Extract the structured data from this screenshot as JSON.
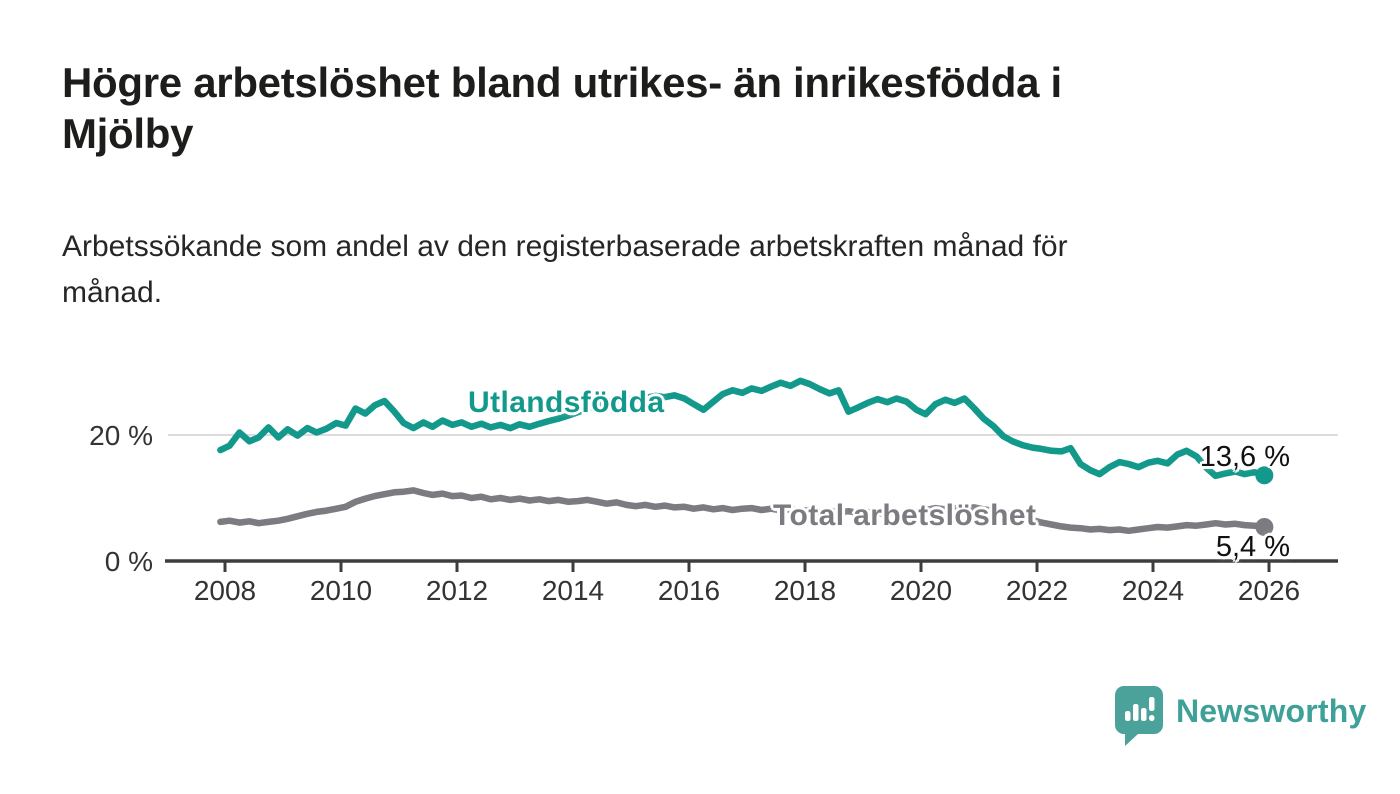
{
  "chart_data": {
    "type": "line",
    "title": "Högre arbetslöshet bland utrikes- än inrikesfödda i\nMjölby",
    "subtitle": "Arbetssökande som andel av den registerbaserade arbetskraften månad för\nmånad.",
    "x_axis": {
      "ticks": [
        2008,
        2010,
        2012,
        2014,
        2016,
        2018,
        2020,
        2022,
        2024,
        2026
      ],
      "range_years": [
        2007.9,
        2027.3
      ]
    },
    "y_axis": {
      "unit": "%",
      "range": [
        0,
        30
      ],
      "gridlines": [
        {
          "value": 20,
          "label": "20 %"
        },
        {
          "value": 0,
          "label": "0 %"
        }
      ]
    },
    "series": [
      {
        "name": "Utlandsfödda",
        "color": "#13998b",
        "end_label": "13,6 %",
        "end_value": 13.6,
        "points": [
          [
            2007.92,
            17.6
          ],
          [
            2008.08,
            18.3
          ],
          [
            2008.25,
            20.4
          ],
          [
            2008.42,
            19.0
          ],
          [
            2008.58,
            19.6
          ],
          [
            2008.75,
            21.2
          ],
          [
            2008.92,
            19.6
          ],
          [
            2009.08,
            20.9
          ],
          [
            2009.25,
            19.9
          ],
          [
            2009.42,
            21.1
          ],
          [
            2009.58,
            20.4
          ],
          [
            2009.75,
            21.0
          ],
          [
            2009.92,
            21.9
          ],
          [
            2010.08,
            21.5
          ],
          [
            2010.25,
            24.2
          ],
          [
            2010.42,
            23.4
          ],
          [
            2010.58,
            24.7
          ],
          [
            2010.75,
            25.4
          ],
          [
            2010.92,
            23.7
          ],
          [
            2011.08,
            21.9
          ],
          [
            2011.25,
            21.1
          ],
          [
            2011.42,
            22.0
          ],
          [
            2011.58,
            21.3
          ],
          [
            2011.75,
            22.3
          ],
          [
            2011.92,
            21.6
          ],
          [
            2012.08,
            22.0
          ],
          [
            2012.25,
            21.3
          ],
          [
            2012.42,
            21.8
          ],
          [
            2012.58,
            21.2
          ],
          [
            2012.75,
            21.6
          ],
          [
            2012.92,
            21.1
          ],
          [
            2013.08,
            21.7
          ],
          [
            2013.25,
            21.3
          ],
          [
            2013.42,
            21.8
          ],
          [
            2013.58,
            22.2
          ],
          [
            2013.75,
            22.6
          ],
          [
            2013.92,
            23.1
          ],
          [
            2014.08,
            23.6
          ],
          [
            2014.25,
            24.2
          ],
          [
            2014.42,
            24.7
          ],
          [
            2014.58,
            25.1
          ],
          [
            2014.75,
            25.4
          ],
          [
            2014.92,
            25.8
          ],
          [
            2015.08,
            25.5
          ],
          [
            2015.25,
            25.9
          ],
          [
            2015.42,
            26.2
          ],
          [
            2015.58,
            26.0
          ],
          [
            2015.75,
            26.3
          ],
          [
            2015.92,
            25.8
          ],
          [
            2016.08,
            24.9
          ],
          [
            2016.25,
            24.0
          ],
          [
            2016.42,
            25.3
          ],
          [
            2016.58,
            26.5
          ],
          [
            2016.75,
            27.1
          ],
          [
            2016.92,
            26.7
          ],
          [
            2017.08,
            27.4
          ],
          [
            2017.25,
            27.0
          ],
          [
            2017.42,
            27.7
          ],
          [
            2017.58,
            28.3
          ],
          [
            2017.75,
            27.8
          ],
          [
            2017.92,
            28.6
          ],
          [
            2018.08,
            28.1
          ],
          [
            2018.25,
            27.3
          ],
          [
            2018.42,
            26.6
          ],
          [
            2018.58,
            27.1
          ],
          [
            2018.75,
            23.7
          ],
          [
            2018.92,
            24.4
          ],
          [
            2019.08,
            25.1
          ],
          [
            2019.25,
            25.7
          ],
          [
            2019.42,
            25.2
          ],
          [
            2019.58,
            25.8
          ],
          [
            2019.75,
            25.3
          ],
          [
            2019.92,
            24.0
          ],
          [
            2020.08,
            23.3
          ],
          [
            2020.25,
            24.9
          ],
          [
            2020.42,
            25.6
          ],
          [
            2020.58,
            25.1
          ],
          [
            2020.75,
            25.8
          ],
          [
            2020.92,
            24.2
          ],
          [
            2021.08,
            22.6
          ],
          [
            2021.25,
            21.4
          ],
          [
            2021.42,
            19.8
          ],
          [
            2021.58,
            19.0
          ],
          [
            2021.75,
            18.4
          ],
          [
            2021.92,
            18.0
          ],
          [
            2022.08,
            17.8
          ],
          [
            2022.25,
            17.5
          ],
          [
            2022.42,
            17.4
          ],
          [
            2022.58,
            17.9
          ],
          [
            2022.75,
            15.4
          ],
          [
            2022.92,
            14.4
          ],
          [
            2023.08,
            13.8
          ],
          [
            2023.25,
            14.9
          ],
          [
            2023.42,
            15.7
          ],
          [
            2023.58,
            15.4
          ],
          [
            2023.75,
            14.9
          ],
          [
            2023.92,
            15.6
          ],
          [
            2024.08,
            15.9
          ],
          [
            2024.25,
            15.5
          ],
          [
            2024.42,
            16.9
          ],
          [
            2024.58,
            17.5
          ],
          [
            2024.75,
            16.6
          ],
          [
            2024.92,
            14.8
          ],
          [
            2025.08,
            13.5
          ],
          [
            2025.25,
            13.9
          ],
          [
            2025.42,
            14.2
          ],
          [
            2025.58,
            13.8
          ],
          [
            2025.75,
            14.1
          ],
          [
            2025.92,
            13.6
          ]
        ]
      },
      {
        "name": "Total arbetslöshet",
        "color": "#7b7b81",
        "end_label": "5,4 %",
        "end_value": 5.4,
        "points": [
          [
            2007.92,
            6.2
          ],
          [
            2008.08,
            6.4
          ],
          [
            2008.25,
            6.1
          ],
          [
            2008.42,
            6.3
          ],
          [
            2008.58,
            6.0
          ],
          [
            2008.75,
            6.2
          ],
          [
            2008.92,
            6.4
          ],
          [
            2009.08,
            6.7
          ],
          [
            2009.25,
            7.1
          ],
          [
            2009.42,
            7.5
          ],
          [
            2009.58,
            7.8
          ],
          [
            2009.75,
            8.0
          ],
          [
            2009.92,
            8.3
          ],
          [
            2010.08,
            8.6
          ],
          [
            2010.25,
            9.4
          ],
          [
            2010.42,
            9.9
          ],
          [
            2010.58,
            10.3
          ],
          [
            2010.75,
            10.6
          ],
          [
            2010.92,
            10.9
          ],
          [
            2011.08,
            11.0
          ],
          [
            2011.25,
            11.2
          ],
          [
            2011.42,
            10.8
          ],
          [
            2011.58,
            10.5
          ],
          [
            2011.75,
            10.7
          ],
          [
            2011.92,
            10.3
          ],
          [
            2012.08,
            10.4
          ],
          [
            2012.25,
            10.0
          ],
          [
            2012.42,
            10.2
          ],
          [
            2012.58,
            9.8
          ],
          [
            2012.75,
            10.0
          ],
          [
            2012.92,
            9.7
          ],
          [
            2013.08,
            9.9
          ],
          [
            2013.25,
            9.6
          ],
          [
            2013.42,
            9.8
          ],
          [
            2013.58,
            9.5
          ],
          [
            2013.75,
            9.7
          ],
          [
            2013.92,
            9.4
          ],
          [
            2014.08,
            9.5
          ],
          [
            2014.25,
            9.7
          ],
          [
            2014.42,
            9.4
          ],
          [
            2014.58,
            9.1
          ],
          [
            2014.75,
            9.3
          ],
          [
            2014.92,
            8.9
          ],
          [
            2015.08,
            8.7
          ],
          [
            2015.25,
            8.9
          ],
          [
            2015.42,
            8.6
          ],
          [
            2015.58,
            8.8
          ],
          [
            2015.75,
            8.5
          ],
          [
            2015.92,
            8.6
          ],
          [
            2016.08,
            8.3
          ],
          [
            2016.25,
            8.5
          ],
          [
            2016.42,
            8.2
          ],
          [
            2016.58,
            8.4
          ],
          [
            2016.75,
            8.1
          ],
          [
            2016.92,
            8.3
          ],
          [
            2017.08,
            8.4
          ],
          [
            2017.25,
            8.1
          ],
          [
            2017.42,
            8.3
          ],
          [
            2017.58,
            8.0
          ],
          [
            2017.75,
            8.2
          ],
          [
            2017.92,
            7.9
          ],
          [
            2018.08,
            8.1
          ],
          [
            2018.25,
            7.8
          ],
          [
            2018.42,
            8.0
          ],
          [
            2018.58,
            7.7
          ],
          [
            2018.75,
            7.9
          ],
          [
            2018.92,
            7.6
          ],
          [
            2019.08,
            7.8
          ],
          [
            2019.25,
            7.5
          ],
          [
            2019.42,
            7.7
          ],
          [
            2019.58,
            7.4
          ],
          [
            2019.75,
            7.6
          ],
          [
            2019.92,
            7.8
          ],
          [
            2020.08,
            8.1
          ],
          [
            2020.25,
            8.4
          ],
          [
            2020.42,
            8.2
          ],
          [
            2020.58,
            8.4
          ],
          [
            2020.75,
            8.3
          ],
          [
            2020.92,
            8.5
          ],
          [
            2021.08,
            8.2
          ],
          [
            2021.25,
            8.0
          ],
          [
            2021.42,
            7.7
          ],
          [
            2021.58,
            7.3
          ],
          [
            2021.75,
            6.9
          ],
          [
            2021.92,
            6.5
          ],
          [
            2022.08,
            6.1
          ],
          [
            2022.25,
            5.8
          ],
          [
            2022.42,
            5.5
          ],
          [
            2022.58,
            5.3
          ],
          [
            2022.75,
            5.2
          ],
          [
            2022.92,
            5.0
          ],
          [
            2023.08,
            5.1
          ],
          [
            2023.25,
            4.9
          ],
          [
            2023.42,
            5.0
          ],
          [
            2023.58,
            4.8
          ],
          [
            2023.75,
            5.0
          ],
          [
            2023.92,
            5.2
          ],
          [
            2024.08,
            5.4
          ],
          [
            2024.25,
            5.3
          ],
          [
            2024.42,
            5.5
          ],
          [
            2024.58,
            5.7
          ],
          [
            2024.75,
            5.6
          ],
          [
            2024.92,
            5.8
          ],
          [
            2025.08,
            6.0
          ],
          [
            2025.25,
            5.8
          ],
          [
            2025.42,
            5.9
          ],
          [
            2025.58,
            5.7
          ],
          [
            2025.75,
            5.6
          ],
          [
            2025.92,
            5.4
          ]
        ]
      }
    ],
    "style": {
      "gridline_color": "#dcdcdc",
      "axis_color": "#3d3d3d",
      "axis_text_color": "#333333"
    }
  },
  "footer": {
    "brand": "Newsworthy",
    "brand_color": "#3da099",
    "bubble_color": "#4aa29b"
  }
}
